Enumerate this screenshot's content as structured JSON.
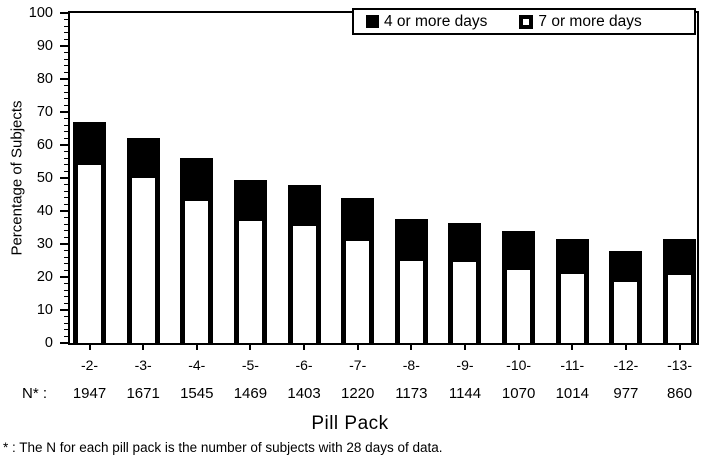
{
  "chart_data": {
    "type": "bar",
    "subtype": "overlay-inset-bars",
    "title": "",
    "xlabel": "Pill Pack",
    "ylabel": "Percentage of Subjects",
    "ylim": [
      0,
      100
    ],
    "y_major_tick_step": 10,
    "y_minor_tick_step": 2,
    "y_ticks": [
      0,
      10,
      20,
      30,
      40,
      50,
      60,
      70,
      80,
      90,
      100
    ],
    "grid": false,
    "legend_position": "top-right-inside",
    "categories": [
      "-2-",
      "-3-",
      "-4-",
      "-5-",
      "-6-",
      "-7-",
      "-8-",
      "-9-",
      "-10-",
      "-11-",
      "-12-",
      "-13-"
    ],
    "series": [
      {
        "name": "4 or more days",
        "swatch": "solid-black",
        "color": "#000000",
        "values": [
          67,
          62,
          56,
          49.5,
          48,
          44,
          37.5,
          36.5,
          34,
          31.5,
          28,
          31.5
        ]
      },
      {
        "name": "7 or more days",
        "swatch": "black-border-white-fill",
        "color": "#ffffff",
        "values": [
          54,
          50,
          43,
          37,
          35.5,
          31,
          25,
          24.5,
          22,
          21,
          18.5,
          20.5
        ]
      }
    ],
    "n_row": {
      "label": "N* :",
      "values": [
        "1947",
        "1671",
        "1545",
        "1469",
        "1403",
        "1220",
        "1173",
        "1144",
        "1070",
        "1014",
        "977",
        "860"
      ]
    },
    "footnote": "* : The N for each pill pack is the number of subjects with 28 days of data."
  },
  "colors": {
    "background": "#ffffff",
    "axis": "#000000",
    "bar_fill": "#000000",
    "inner_bar_fill": "#ffffff",
    "text": "#000000"
  }
}
